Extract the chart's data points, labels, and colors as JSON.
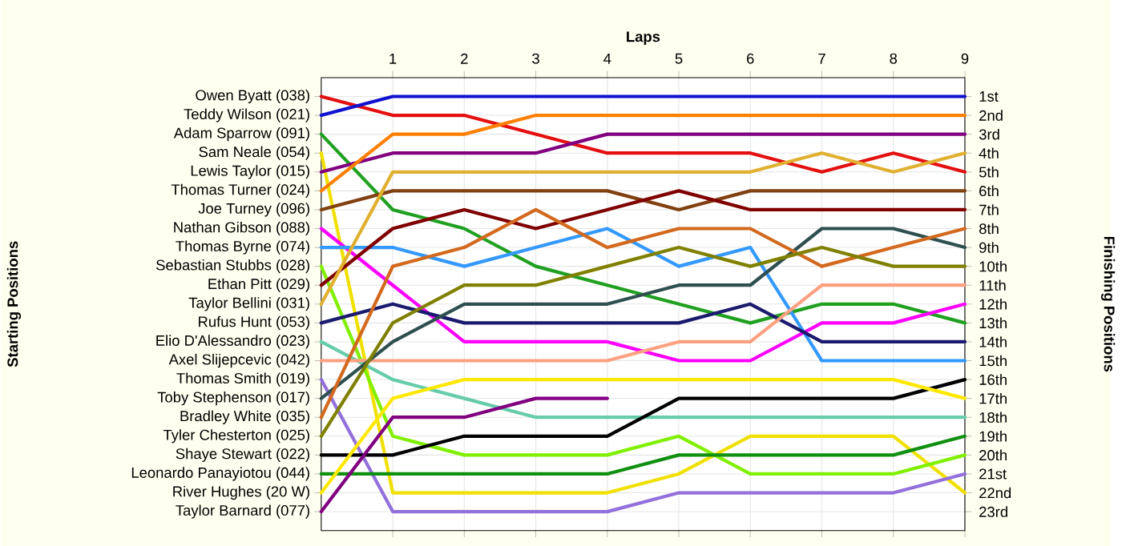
{
  "chart_data": {
    "type": "line",
    "xlabel": "Laps",
    "x": [
      0,
      1,
      2,
      3,
      4,
      5,
      6,
      7,
      8,
      9
    ],
    "xlim": [
      0,
      9
    ],
    "xticks": [
      1,
      2,
      3,
      4,
      5,
      6,
      7,
      8,
      9
    ],
    "ylim": [
      24,
      0
    ],
    "grid": true,
    "marker": "none",
    "line_style": "solid",
    "yticks": [
      {
        "value": 1,
        "label": "1st"
      },
      {
        "value": 2,
        "label": "2nd"
      },
      {
        "value": 3,
        "label": "3rd"
      },
      {
        "value": 4,
        "label": "4th"
      },
      {
        "value": 5,
        "label": "5th"
      },
      {
        "value": 6,
        "label": "6th"
      },
      {
        "value": 7,
        "label": "7th"
      },
      {
        "value": 8,
        "label": "8th"
      },
      {
        "value": 9,
        "label": "9th"
      },
      {
        "value": 10,
        "label": "10th"
      },
      {
        "value": 11,
        "label": "11th"
      },
      {
        "value": 12,
        "label": "12th"
      },
      {
        "value": 13,
        "label": "13th"
      },
      {
        "value": 14,
        "label": "14th"
      },
      {
        "value": 15,
        "label": "15th"
      },
      {
        "value": 16,
        "label": "16th"
      },
      {
        "value": 17,
        "label": "17th"
      },
      {
        "value": 18,
        "label": "18th"
      },
      {
        "value": 19,
        "label": "19th"
      },
      {
        "value": 20,
        "label": "20th"
      },
      {
        "value": 21,
        "label": "21st"
      },
      {
        "value": 22,
        "label": "22nd"
      },
      {
        "value": 23,
        "label": "23rd"
      }
    ],
    "annotations": [
      "Starting Positions",
      "Finishing Positions"
    ],
    "series": [
      {
        "name": "Owen Byatt (038)",
        "color": "#e41010",
        "values": [
          1,
          2,
          2,
          3,
          4,
          4,
          4,
          5,
          4,
          5
        ]
      },
      {
        "name": "Teddy Wilson (021)",
        "color": "#1010d0",
        "values": [
          2,
          1,
          1,
          1,
          1,
          1,
          1,
          1,
          1,
          1
        ]
      },
      {
        "name": "Adam Sparrow (091)",
        "color": "#20a020",
        "values": [
          3,
          7,
          8,
          10,
          11,
          12,
          13,
          12,
          12,
          13
        ]
      },
      {
        "name": "Sam Neale (054)",
        "color": "#f0e000",
        "values": [
          4,
          22,
          22,
          22,
          22,
          21,
          19,
          19,
          19,
          22
        ]
      },
      {
        "name": "Lewis Taylor (015)",
        "color": "#800080",
        "values": [
          5,
          4,
          4,
          4,
          3,
          3,
          3,
          3,
          3,
          3
        ]
      },
      {
        "name": "Thomas Turner (024)",
        "color": "#ff8000",
        "values": [
          6,
          3,
          3,
          2,
          2,
          2,
          2,
          2,
          2,
          2
        ]
      },
      {
        "name": "Joe Turney (096)",
        "color": "#804010",
        "values": [
          7,
          6,
          6,
          6,
          6,
          7,
          6,
          6,
          6,
          6
        ]
      },
      {
        "name": "Nathan Gibson (088)",
        "color": "#ff00ff",
        "values": [
          8,
          11,
          14,
          14,
          14,
          15,
          15,
          13,
          13,
          12
        ]
      },
      {
        "name": "Thomas Byrne (074)",
        "color": "#3399ff",
        "values": [
          9,
          9,
          10,
          9,
          8,
          10,
          9,
          15,
          15,
          15
        ]
      },
      {
        "name": "Sebastian Stubbs (028)",
        "color": "#80f000",
        "values": [
          10,
          19,
          20,
          20,
          20,
          19,
          21,
          21,
          21,
          20
        ]
      },
      {
        "name": "Ethan Pitt (029)",
        "color": "#800000",
        "values": [
          11,
          8,
          7,
          8,
          7,
          6,
          7,
          7,
          7,
          7
        ]
      },
      {
        "name": "Taylor Bellini (031)",
        "color": "#e0b030",
        "values": [
          12,
          5,
          5,
          5,
          5,
          5,
          5,
          4,
          5,
          4
        ]
      },
      {
        "name": "Rufus Hunt (053)",
        "color": "#1a1a6e",
        "values": [
          13,
          12,
          13,
          13,
          13,
          13,
          12,
          14,
          14,
          14
        ]
      },
      {
        "name": "Elio D'Alessandro (023)",
        "color": "#66ccaa",
        "values": [
          14,
          16,
          17,
          18,
          18,
          18,
          18,
          18,
          18,
          18
        ]
      },
      {
        "name": "Axel Slijepcevic (042)",
        "color": "#ffa080",
        "values": [
          15,
          15,
          15,
          15,
          15,
          14,
          14,
          11,
          11,
          11
        ]
      },
      {
        "name": "Thomas Smith (019)",
        "color": "#9370db",
        "values": [
          16,
          23,
          23,
          23,
          23,
          22,
          22,
          22,
          22,
          21
        ]
      },
      {
        "name": "Toby Stephenson (017)",
        "color": "#2f4f4f",
        "values": [
          17,
          14,
          12,
          12,
          12,
          11,
          11,
          8,
          8,
          9
        ]
      },
      {
        "name": "Bradley White (035)",
        "color": "#d2691e",
        "values": [
          18,
          10,
          9,
          7,
          9,
          8,
          8,
          10,
          9,
          8
        ]
      },
      {
        "name": "Tyler Chesterton (025)",
        "color": "#808000",
        "values": [
          19,
          13,
          11,
          11,
          10,
          9,
          10,
          9,
          10,
          10
        ]
      },
      {
        "name": "Shaye Stewart (022)",
        "color": "#000000",
        "values": [
          20,
          20,
          19,
          19,
          19,
          17,
          17,
          17,
          17,
          16
        ]
      },
      {
        "name": "Leonardo Panayiotou (044)",
        "color": "#109010",
        "values": [
          21,
          21,
          21,
          21,
          21,
          20,
          20,
          20,
          20,
          19
        ]
      },
      {
        "name": "River Hughes (20 W)",
        "color": "#ffe800",
        "values": [
          22,
          17,
          16,
          16,
          16,
          16,
          16,
          16,
          16,
          17
        ]
      },
      {
        "name": "Taylor Barnard (077)",
        "color": "#800080",
        "values": [
          23,
          18,
          18,
          17,
          17,
          null,
          null,
          null,
          null,
          null
        ]
      }
    ]
  }
}
